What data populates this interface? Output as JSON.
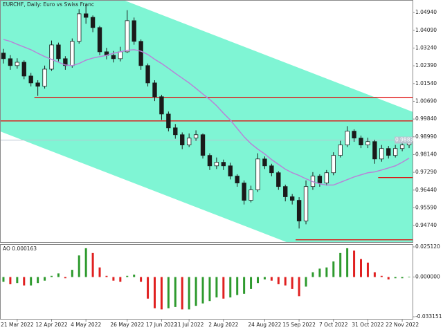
{
  "chart_data": [
    {
      "type": "candlestick",
      "title": "EURCHF, Daily:  Euro vs Swiss Franc",
      "ylim": [
        0.9395,
        1.0554
      ],
      "yticks": [
        {
          "value": 1.0494,
          "label": "1.04940"
        },
        {
          "value": 1.0409,
          "label": "1.04090"
        },
        {
          "value": 1.0324,
          "label": "1.03240"
        },
        {
          "value": 1.0239,
          "label": "1.02390"
        },
        {
          "value": 1.0154,
          "label": "1.01540"
        },
        {
          "value": 1.0069,
          "label": "1.00690"
        },
        {
          "value": 0.9984,
          "label": "0.99840"
        },
        {
          "value": 0.9899,
          "label": "0.98990"
        },
        {
          "value": 0.9814,
          "label": "0.98140"
        },
        {
          "value": 0.9729,
          "label": "0.97290"
        },
        {
          "value": 0.9644,
          "label": "0.96440"
        },
        {
          "value": 0.9559,
          "label": "0.95590"
        },
        {
          "value": 0.9474,
          "label": "0.94740"
        }
      ],
      "grid": false,
      "color": "#1a1a1a",
      "channel_color": "#7ff5d4",
      "open": [
        1.03,
        1.0273,
        1.024,
        1.0256,
        1.019,
        1.0157,
        1.0141,
        1.0223,
        1.0339,
        1.0273,
        1.024,
        1.0356,
        1.0488,
        1.0471,
        1.0422,
        1.0306,
        1.0289,
        1.0273,
        1.0306,
        1.0455,
        1.0356,
        1.024,
        1.0157,
        1.0091,
        1.0008,
        0.9942,
        0.9909,
        0.986,
        0.9893,
        0.9909,
        0.981,
        0.976,
        0.9777,
        0.976,
        0.9711,
        0.9678,
        0.9595,
        0.9645,
        0.9793,
        0.976,
        0.9727,
        0.9661,
        0.9612,
        0.9595,
        0.9496,
        0.9661,
        0.9711,
        0.9678,
        0.9727,
        0.981,
        0.986,
        0.9926,
        0.9893,
        0.986,
        0.9876,
        0.9793,
        0.9843,
        0.981,
        0.9843,
        0.986
      ],
      "high": [
        1.032,
        1.029,
        1.0275,
        1.0265,
        1.0205,
        1.017,
        1.024,
        1.036,
        1.035,
        1.0285,
        1.037,
        1.051,
        1.053,
        1.048,
        1.043,
        1.0325,
        1.031,
        1.033,
        1.0505,
        1.047,
        1.0365,
        1.025,
        1.017,
        1.01,
        1.002,
        0.996,
        0.992,
        0.9915,
        0.993,
        0.9915,
        0.982,
        0.98,
        0.979,
        0.9775,
        0.972,
        0.969,
        0.9665,
        0.982,
        0.9805,
        0.977,
        0.9735,
        0.967,
        0.9625,
        0.961,
        0.969,
        0.973,
        0.972,
        0.974,
        0.9825,
        0.988,
        0.995,
        0.9935,
        0.9905,
        0.9895,
        0.9885,
        0.986,
        0.9855,
        0.986,
        0.9875,
        0.989
      ],
      "low": [
        1.025,
        1.022,
        1.0225,
        1.0175,
        1.014,
        1.0095,
        1.013,
        1.0215,
        1.026,
        1.022,
        1.023,
        1.0345,
        1.044,
        1.04,
        1.029,
        1.027,
        1.0255,
        1.026,
        1.03,
        1.034,
        1.022,
        1.014,
        1.007,
        0.998,
        0.9925,
        0.989,
        0.984,
        0.985,
        0.988,
        0.9795,
        0.974,
        0.9745,
        0.974,
        0.9695,
        0.966,
        0.9575,
        0.9585,
        0.9635,
        0.9745,
        0.971,
        0.9645,
        0.959,
        0.9575,
        0.946,
        0.948,
        0.9645,
        0.966,
        0.9665,
        0.9715,
        0.98,
        0.985,
        0.9875,
        0.9845,
        0.9845,
        0.977,
        0.978,
        0.9795,
        0.98,
        0.983,
        0.9845
      ],
      "close": [
        1.0273,
        1.024,
        1.0256,
        1.019,
        1.0157,
        1.0141,
        1.0223,
        1.0339,
        1.0273,
        1.024,
        1.0356,
        1.0488,
        1.0471,
        1.0422,
        1.0306,
        1.0289,
        1.0273,
        1.0306,
        1.0455,
        1.0356,
        1.024,
        1.0157,
        1.0091,
        1.0008,
        0.9942,
        0.9909,
        0.986,
        0.9893,
        0.9909,
        0.981,
        0.976,
        0.9777,
        0.976,
        0.9711,
        0.9678,
        0.9595,
        0.9645,
        0.9793,
        0.976,
        0.9727,
        0.9661,
        0.9612,
        0.9595,
        0.9496,
        0.9661,
        0.9711,
        0.9678,
        0.9727,
        0.981,
        0.986,
        0.9926,
        0.9893,
        0.986,
        0.9876,
        0.9793,
        0.9843,
        0.981,
        0.9843,
        0.986,
        0.9876
      ],
      "moving_average": {
        "color": "#b784d8",
        "values": [
          1.0365,
          1.0356,
          1.0342,
          1.0329,
          1.0316,
          1.0299,
          1.0283,
          1.027,
          1.0256,
          1.0243,
          1.024,
          1.025,
          1.0266,
          1.0276,
          1.0283,
          1.0289,
          1.0299,
          1.0306,
          1.0313,
          1.0316,
          1.0309,
          1.0293,
          1.027,
          1.025,
          1.0227,
          1.0203,
          1.018,
          1.0157,
          1.0131,
          1.0104,
          1.0078,
          1.0048,
          1.0012,
          0.9979,
          0.9939,
          0.9899,
          0.9866,
          0.984,
          0.9817,
          0.979,
          0.9767,
          0.9744,
          0.9727,
          0.9714,
          0.9698,
          0.9684,
          0.9674,
          0.9668,
          0.9668,
          0.9681,
          0.9694,
          0.9707,
          0.9717,
          0.9727,
          0.9731,
          0.974,
          0.975,
          0.976,
          0.9777,
          0.9797
        ]
      },
      "channel": {
        "upper": [
          1.0776,
          1.0025
        ],
        "lower": [
          0.9919,
          0.9168
        ]
      },
      "levels": {
        "color": "#e01010",
        "values": [
          1.0088,
          0.9975,
          0.9704,
          0.9406
        ],
        "start": [
          5,
          0,
          55,
          43
        ]
      },
      "bid": {
        "value": 0.98834,
        "label": "0.98834",
        "color": "#b8c4d0"
      }
    },
    {
      "type": "histogram",
      "title": "AO 0.000163",
      "ylim": [
        -0.03544,
        0.0274
      ],
      "yticks": [
        {
          "value": 0.02512,
          "label": "0.025120"
        },
        {
          "value": 0,
          "label": "0.000000"
        },
        {
          "value": -0.033151,
          "label": "-0.033151"
        }
      ],
      "up_color": "#2e9a2e",
      "down_color": "#e02020",
      "values": [
        -0.004,
        -0.006,
        -0.005,
        -0.007,
        -0.007,
        -0.005,
        -0.003,
        0.001,
        0.003,
        -0.001,
        0.006,
        0.018,
        0.024,
        0.02,
        0.008,
        0.001,
        -0.003,
        -0.004,
        0.001,
        0.002,
        -0.004,
        -0.018,
        -0.026,
        -0.027,
        -0.026,
        -0.025,
        -0.027,
        -0.027,
        -0.024,
        -0.022,
        -0.02,
        -0.017,
        -0.018,
        -0.017,
        -0.015,
        -0.014,
        -0.01,
        -0.005,
        -0.002,
        -0.003,
        -0.006,
        -0.007,
        -0.01,
        -0.016,
        -0.008,
        0.004,
        0.007,
        0.008,
        0.013,
        0.02,
        0.024,
        0.022,
        0.015,
        0.012,
        0.004,
        0.001,
        -0.002,
        -0.001,
        -0.001,
        0.000163
      ],
      "categories": [
        null,
        null,
        "21 Mar 2022",
        null,
        null,
        null,
        null,
        "12 Apr 2022",
        null,
        null,
        null,
        null,
        "4 May 2022",
        null,
        null,
        null,
        null,
        null,
        "26 May 2022",
        null,
        null,
        null,
        null,
        "17 Jun 2022",
        null,
        null,
        null,
        "11 Jul 2022",
        null,
        null,
        null,
        null,
        "2 Aug 2022",
        null,
        null,
        null,
        null,
        null,
        "24 Aug 2022",
        null,
        null,
        null,
        null,
        "15 Sep 2022",
        null,
        null,
        null,
        null,
        "7 Oct 2022",
        null,
        null,
        null,
        null,
        "31 Oct 2022",
        null,
        null,
        null,
        null,
        "22 Nov 2022",
        null
      ]
    }
  ]
}
